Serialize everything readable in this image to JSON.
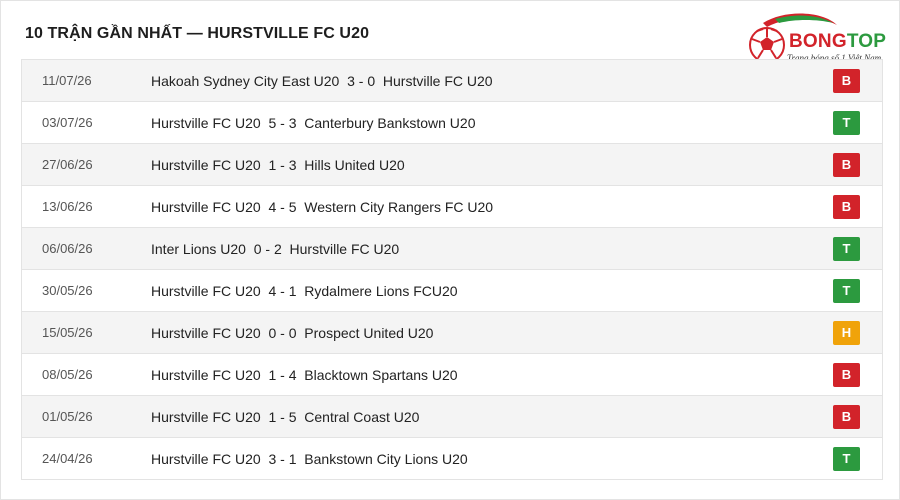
{
  "header": {
    "title": "10 TRẬN GẦN NHẤT — HURSTVILLE FC U20"
  },
  "logo": {
    "name_part1": "BONG",
    "name_part2": "TOP",
    "tagline": "Trang bóng số 1 Việt Nam"
  },
  "colors": {
    "B": "#d2232a",
    "T": "#2c9a3f",
    "H": "#f0a30a"
  },
  "matches": [
    {
      "date": "11/07/26",
      "home": "Hakoah Sydney City East U20",
      "score": "3 - 0",
      "away": "Hurstville FC U20",
      "result": "B"
    },
    {
      "date": "03/07/26",
      "home": "Hurstville FC U20",
      "score": "5 - 3",
      "away": "Canterbury Bankstown U20",
      "result": "T"
    },
    {
      "date": "27/06/26",
      "home": "Hurstville FC U20",
      "score": "1 - 3",
      "away": "Hills United U20",
      "result": "B"
    },
    {
      "date": "13/06/26",
      "home": "Hurstville FC U20",
      "score": "4 - 5",
      "away": "Western City Rangers FC U20",
      "result": "B"
    },
    {
      "date": "06/06/26",
      "home": "Inter Lions U20",
      "score": "0 - 2",
      "away": "Hurstville FC U20",
      "result": "T"
    },
    {
      "date": "30/05/26",
      "home": "Hurstville FC U20",
      "score": "4 - 1",
      "away": "Rydalmere Lions FCU20",
      "result": "T"
    },
    {
      "date": "15/05/26",
      "home": "Hurstville FC U20",
      "score": "0 - 0",
      "away": "Prospect United U20",
      "result": "H"
    },
    {
      "date": "08/05/26",
      "home": "Hurstville FC U20",
      "score": "1 - 4",
      "away": "Blacktown Spartans U20",
      "result": "B"
    },
    {
      "date": "01/05/26",
      "home": "Hurstville FC U20",
      "score": "1 - 5",
      "away": "Central Coast U20",
      "result": "B"
    },
    {
      "date": "24/04/26",
      "home": "Hurstville FC U20",
      "score": "3 - 1",
      "away": "Bankstown City Lions U20",
      "result": "T"
    }
  ]
}
